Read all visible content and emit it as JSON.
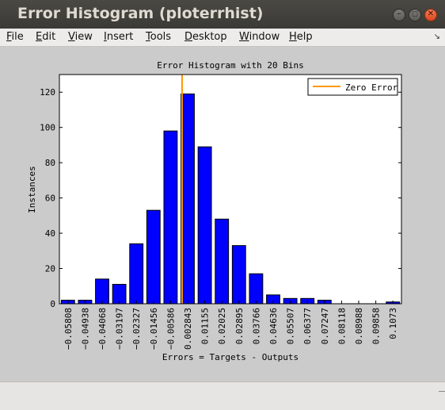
{
  "window": {
    "title": "Error Histogram (ploterrhist)",
    "controls": {
      "minimize": "–",
      "maximize": "◻",
      "close": "✕"
    }
  },
  "menu": {
    "items": [
      {
        "key": "file",
        "label": "File",
        "mnemonic": "F",
        "rest": "ile"
      },
      {
        "key": "edit",
        "label": "Edit",
        "mnemonic": "E",
        "rest": "dit"
      },
      {
        "key": "view",
        "label": "View",
        "mnemonic": "V",
        "rest": "iew"
      },
      {
        "key": "insert",
        "label": "Insert",
        "mnemonic": "I",
        "rest": "nsert"
      },
      {
        "key": "tools",
        "label": "Tools",
        "mnemonic": "T",
        "rest": "ools"
      },
      {
        "key": "desktop",
        "label": "Desktop",
        "mnemonic": "D",
        "rest": "esktop"
      },
      {
        "key": "window",
        "label": "Window",
        "mnemonic": "W",
        "rest": "indow"
      },
      {
        "key": "help",
        "label": "Help",
        "mnemonic": "H",
        "rest": "elp"
      }
    ],
    "dock_icon": "dock-arrow-icon"
  },
  "chart_data": {
    "type": "bar",
    "title": "Error Histogram with 20 Bins",
    "xlabel": "Errors = Targets - Outputs",
    "ylabel": "Instances",
    "categories": [
      "-0.05808",
      "-0.04938",
      "-0.04068",
      "-0.03197",
      "-0.02327",
      "-0.01456",
      "-0.00586",
      "0.002843",
      "0.01155",
      "0.02025",
      "0.02895",
      "0.03766",
      "0.04636",
      "0.05507",
      "0.06377",
      "0.07247",
      "0.08118",
      "0.08988",
      "0.09858",
      "0.1073"
    ],
    "category_labels": [
      "−0.05808",
      "−0.04938",
      "−0.04068",
      "−0.03197",
      "−0.02327",
      "−0.01456",
      "−0.00586",
      "0.002843",
      "0.01155",
      "0.02025",
      "0.02895",
      "0.03766",
      "0.04636",
      "0.05507",
      "0.06377",
      "0.07247",
      "0.08118",
      "0.08988",
      "0.09858",
      "0.1073"
    ],
    "values": [
      2,
      2,
      14,
      11,
      34,
      53,
      98,
      119,
      89,
      48,
      33,
      17,
      5,
      3,
      3,
      2,
      0,
      0,
      0,
      1
    ],
    "ylim": [
      0,
      130
    ],
    "yticks": [
      0,
      20,
      40,
      60,
      80,
      100,
      120
    ],
    "bar_color": "#0000ff",
    "zero_error_line": {
      "label": "Zero Error",
      "x": 0,
      "color": "#ff9900"
    },
    "legend": {
      "entries": [
        "Zero Error"
      ],
      "placement": "top-right"
    },
    "grid": false
  }
}
